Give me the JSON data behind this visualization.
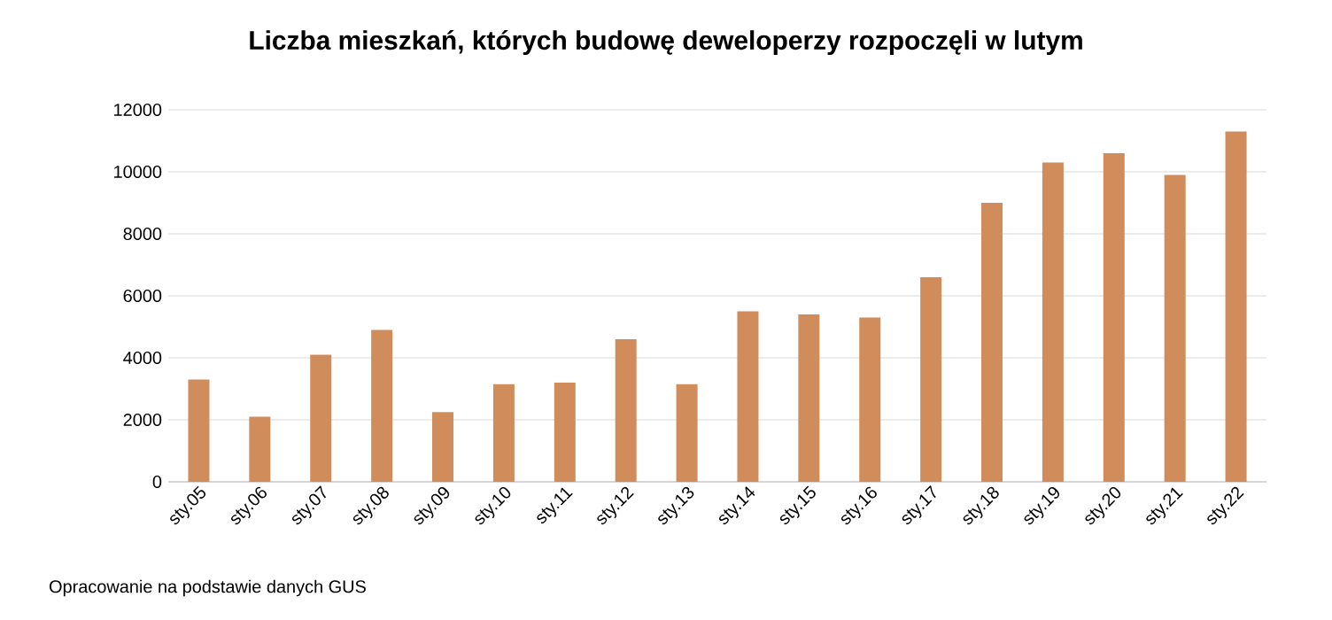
{
  "chart_data": {
    "type": "bar",
    "title": "Liczba mieszkań, których budowę deweloperzy rozpoczęli w lutym",
    "categories": [
      "sty.05",
      "sty.06",
      "sty.07",
      "sty.08",
      "sty.09",
      "sty.10",
      "sty.11",
      "sty.12",
      "sty.13",
      "sty.14",
      "sty.15",
      "sty.16",
      "sty.17",
      "sty.18",
      "sty.19",
      "sty.20",
      "sty.21",
      "sty.22"
    ],
    "values": [
      3300,
      2100,
      4100,
      4900,
      2250,
      3150,
      3200,
      4600,
      3150,
      5500,
      5400,
      5300,
      6600,
      9000,
      10300,
      10600,
      9900,
      11300
    ],
    "color": "#d08c5b",
    "ylim": [
      0,
      12000
    ],
    "yticks": [
      0,
      2000,
      4000,
      6000,
      8000,
      10000,
      12000
    ],
    "grid": "y",
    "annotations": [
      "Opracowanie na podstawie danych GUS"
    ]
  }
}
